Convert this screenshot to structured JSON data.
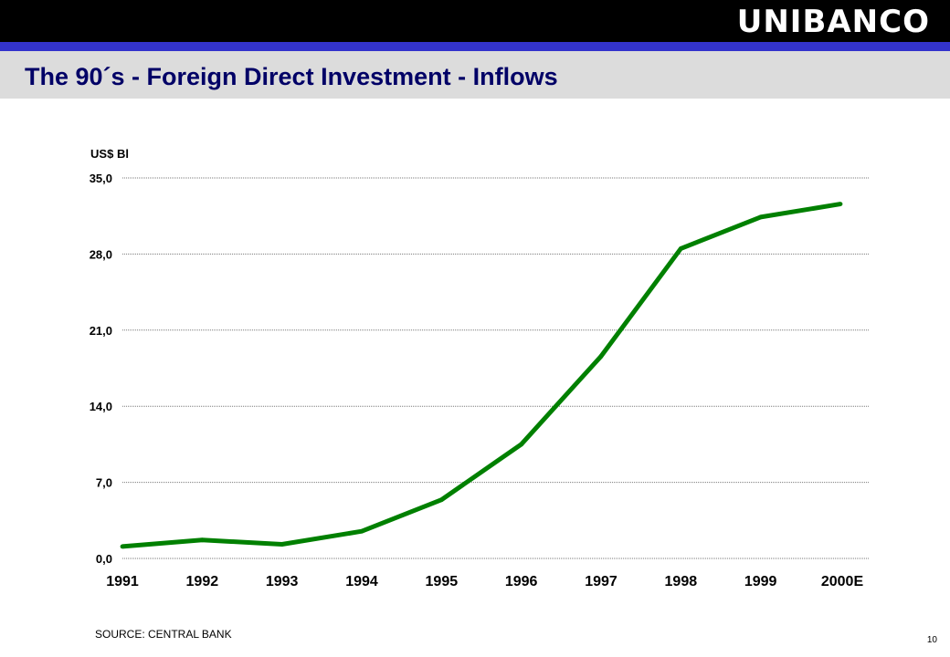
{
  "header": {
    "logo_text": "UNIBANCO",
    "title": "The 90´s - Foreign Direct Investment - Inflows"
  },
  "colors": {
    "topbar": "#000000",
    "accent_line": "#3333cc",
    "title_band": "#dcdcdc",
    "title_text": "#000066",
    "series_line": "#008000"
  },
  "chart_data": {
    "type": "line",
    "title": "",
    "ylabel": "US$ Bl",
    "xlabel": "",
    "categories": [
      "1991",
      "1992",
      "1993",
      "1994",
      "1995",
      "1996",
      "1997",
      "1998",
      "1999",
      "2000E"
    ],
    "series": [
      {
        "values": [
          1.1,
          1.7,
          1.3,
          2.5,
          5.4,
          10.5,
          18.6,
          28.5,
          31.4,
          32.6
        ]
      }
    ],
    "ylim": [
      0,
      35
    ],
    "yticks": [
      "0,0",
      "7,0",
      "14,0",
      "21,0",
      "28,0",
      "35,0"
    ],
    "ytick_values": [
      0,
      7,
      14,
      21,
      28,
      35
    ],
    "grid": true,
    "legend": "none"
  },
  "footer": {
    "source": "SOURCE:  CENTRAL  BANK",
    "page_number": "10"
  }
}
